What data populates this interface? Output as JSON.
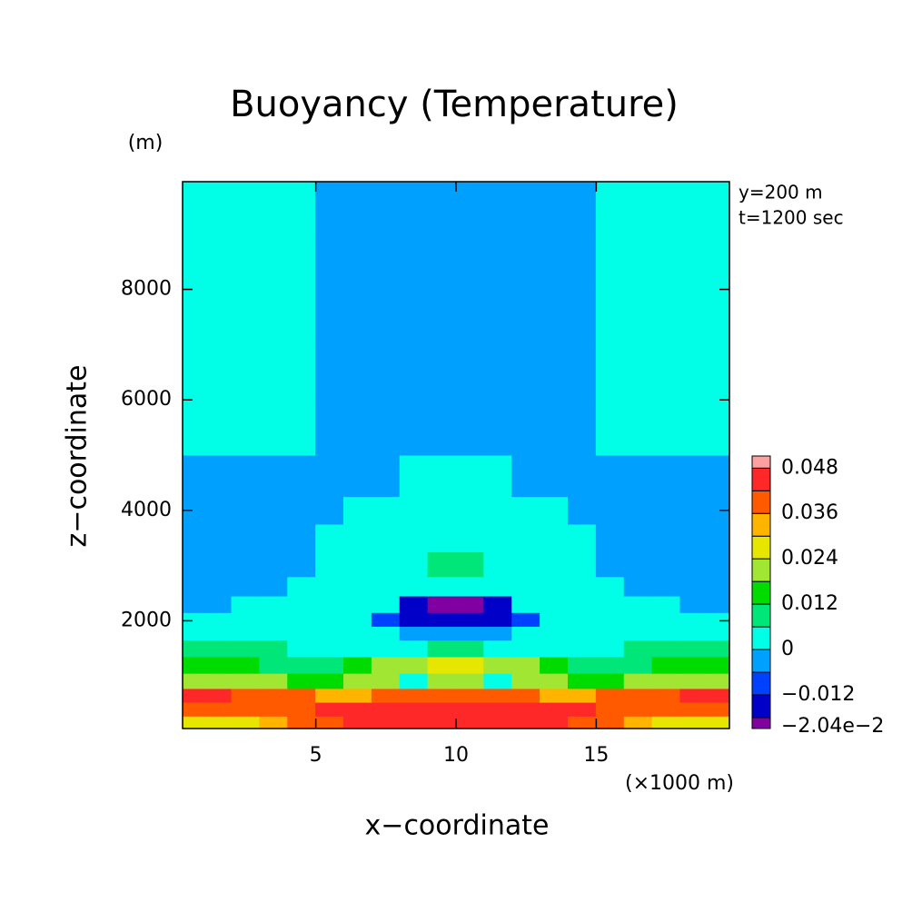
{
  "chart_data": {
    "type": "contour",
    "title": "Buoyancy (Temperature)",
    "xlabel": "x−coordinate",
    "ylabel": "z−coordinate",
    "x_unit": "(×1000 m)",
    "y_unit": "(m)",
    "annotations": [
      "y=200 m",
      "t=1200 sec"
    ],
    "xlim": [
      0.25,
      19.75
    ],
    "ylim": [
      50,
      9950
    ],
    "xticks": [
      5,
      10,
      15
    ],
    "yticks": [
      2000,
      4000,
      6000,
      8000
    ],
    "x": [
      0.5,
      1.5,
      2.5,
      3.5,
      4.5,
      5.5,
      6.5,
      7.5,
      8.5,
      9.5,
      10.5,
      11.5,
      12.5,
      13.5,
      14.5,
      15.5,
      16.5,
      17.5,
      18.5,
      19.5
    ],
    "y": [
      150,
      400,
      650,
      900,
      1200,
      1500,
      1800,
      2000,
      2300,
      2600,
      3000,
      3500,
      4000,
      4500,
      5500,
      6500,
      7500,
      8500,
      9500
    ],
    "z": [
      [
        0.027,
        0.027,
        0.027,
        0.033,
        0.039,
        0.039,
        0.045,
        0.045,
        0.045,
        0.045,
        0.045,
        0.045,
        0.045,
        0.045,
        0.039,
        0.039,
        0.033,
        0.027,
        0.027,
        0.027
      ],
      [
        0.039,
        0.039,
        0.039,
        0.039,
        0.039,
        0.045,
        0.045,
        0.045,
        0.045,
        0.045,
        0.045,
        0.045,
        0.045,
        0.045,
        0.045,
        0.039,
        0.039,
        0.039,
        0.039,
        0.039
      ],
      [
        0.045,
        0.045,
        0.039,
        0.039,
        0.039,
        0.033,
        0.033,
        0.039,
        0.039,
        0.039,
        0.039,
        0.039,
        0.039,
        0.033,
        0.033,
        0.039,
        0.039,
        0.039,
        0.045,
        0.045
      ],
      [
        0.021,
        0.021,
        0.021,
        0.021,
        0.015,
        0.015,
        0.021,
        0.021,
        0.003,
        0.021,
        0.021,
        0.003,
        0.021,
        0.021,
        0.015,
        0.015,
        0.021,
        0.021,
        0.021,
        0.021
      ],
      [
        0.015,
        0.015,
        0.015,
        0.009,
        0.009,
        0.009,
        0.015,
        0.021,
        0.021,
        0.027,
        0.027,
        0.021,
        0.021,
        0.015,
        0.009,
        0.009,
        0.009,
        0.015,
        0.015,
        0.015
      ],
      [
        0.009,
        0.009,
        0.009,
        0.009,
        0.003,
        0.003,
        0.003,
        0.003,
        0.003,
        0.009,
        0.009,
        0.003,
        0.003,
        0.003,
        0.003,
        0.003,
        0.009,
        0.009,
        0.009,
        0.009
      ],
      [
        0.003,
        0.003,
        0.003,
        0.003,
        0.003,
        0.003,
        0.003,
        0.003,
        -0.003,
        -0.003,
        -0.003,
        -0.003,
        0.003,
        0.003,
        0.003,
        0.003,
        0.003,
        0.003,
        0.003,
        0.003
      ],
      [
        0.003,
        0.003,
        0.003,
        0.003,
        0.003,
        0.003,
        0.003,
        -0.009,
        -0.015,
        -0.015,
        -0.015,
        -0.015,
        -0.009,
        0.003,
        0.003,
        0.003,
        0.003,
        0.003,
        0.003,
        0.003
      ],
      [
        -0.003,
        -0.003,
        0.003,
        0.003,
        0.003,
        0.003,
        0.003,
        0.003,
        -0.015,
        -0.019,
        -0.019,
        -0.015,
        0.003,
        0.003,
        0.003,
        0.003,
        0.003,
        0.003,
        -0.003,
        -0.003
      ],
      [
        -0.003,
        -0.003,
        -0.003,
        -0.003,
        0.003,
        0.003,
        0.003,
        0.003,
        0.003,
        0.003,
        0.003,
        0.003,
        0.003,
        0.003,
        0.003,
        0.003,
        -0.003,
        -0.003,
        -0.003,
        -0.003
      ],
      [
        -0.003,
        -0.003,
        -0.003,
        -0.003,
        -0.003,
        0.003,
        0.003,
        0.003,
        0.003,
        0.009,
        0.009,
        0.003,
        0.003,
        0.003,
        0.003,
        -0.003,
        -0.003,
        -0.003,
        -0.003,
        -0.003
      ],
      [
        -0.003,
        -0.003,
        -0.003,
        -0.003,
        -0.003,
        0.003,
        0.003,
        0.003,
        0.003,
        0.003,
        0.003,
        0.003,
        0.003,
        0.003,
        0.003,
        -0.003,
        -0.003,
        -0.003,
        -0.003,
        -0.003
      ],
      [
        -0.003,
        -0.003,
        -0.003,
        -0.003,
        -0.003,
        -0.003,
        0.003,
        0.003,
        0.003,
        0.003,
        0.003,
        0.003,
        0.003,
        0.003,
        -0.003,
        -0.003,
        -0.003,
        -0.003,
        -0.003,
        -0.003
      ],
      [
        -0.003,
        -0.003,
        -0.003,
        -0.003,
        -0.003,
        -0.003,
        -0.003,
        -0.003,
        0.003,
        0.003,
        0.003,
        0.003,
        -0.003,
        -0.003,
        -0.003,
        -0.003,
        -0.003,
        -0.003,
        -0.003,
        -0.003
      ],
      [
        0.003,
        0.003,
        0.003,
        0.003,
        0.003,
        -0.003,
        -0.003,
        -0.003,
        -0.003,
        -0.003,
        -0.003,
        -0.003,
        -0.003,
        -0.003,
        -0.003,
        0.003,
        0.003,
        0.003,
        0.003,
        0.003
      ],
      [
        0.003,
        0.003,
        0.003,
        0.003,
        0.003,
        -0.003,
        -0.003,
        -0.003,
        -0.003,
        -0.003,
        -0.003,
        -0.003,
        -0.003,
        -0.003,
        -0.003,
        0.003,
        0.003,
        0.003,
        0.003,
        0.003
      ],
      [
        0.003,
        0.003,
        0.003,
        0.003,
        0.003,
        -0.003,
        -0.003,
        -0.003,
        -0.003,
        -0.003,
        -0.003,
        -0.003,
        -0.003,
        -0.003,
        -0.003,
        0.003,
        0.003,
        0.003,
        0.003,
        0.003
      ],
      [
        0.003,
        0.003,
        0.003,
        0.003,
        0.003,
        -0.003,
        -0.003,
        -0.003,
        -0.003,
        -0.003,
        -0.003,
        -0.003,
        -0.003,
        -0.003,
        -0.003,
        0.003,
        0.003,
        0.003,
        0.003,
        0.003
      ],
      [
        0.003,
        0.003,
        0.003,
        0.003,
        0.003,
        -0.003,
        -0.003,
        -0.003,
        -0.003,
        -0.003,
        -0.003,
        -0.003,
        -0.003,
        -0.003,
        -0.003,
        0.003,
        0.003,
        0.003,
        0.003,
        0.003
      ]
    ],
    "colorbar": {
      "clim": [
        -0.0209,
        0.0512
      ],
      "levels": [
        -0.018,
        -0.012,
        -0.006,
        0,
        0.006,
        0.012,
        0.018,
        0.024,
        0.03,
        0.036,
        0.042,
        0.048
      ],
      "colors": [
        "#8000a0",
        "#0000c8",
        "#0040ff",
        "#00a0ff",
        "#00ffe6",
        "#00e678",
        "#00dc00",
        "#a0e632",
        "#e6e600",
        "#ffb400",
        "#ff5a00",
        "#ff2828",
        "#ffa0a0"
      ],
      "ticks": [
        0.048,
        0.036,
        0.024,
        0.012,
        0,
        {
          "value": -0.012,
          "label": "−0.012"
        },
        {
          "value": -0.0204,
          "label": "−2.04e−2"
        }
      ]
    }
  }
}
